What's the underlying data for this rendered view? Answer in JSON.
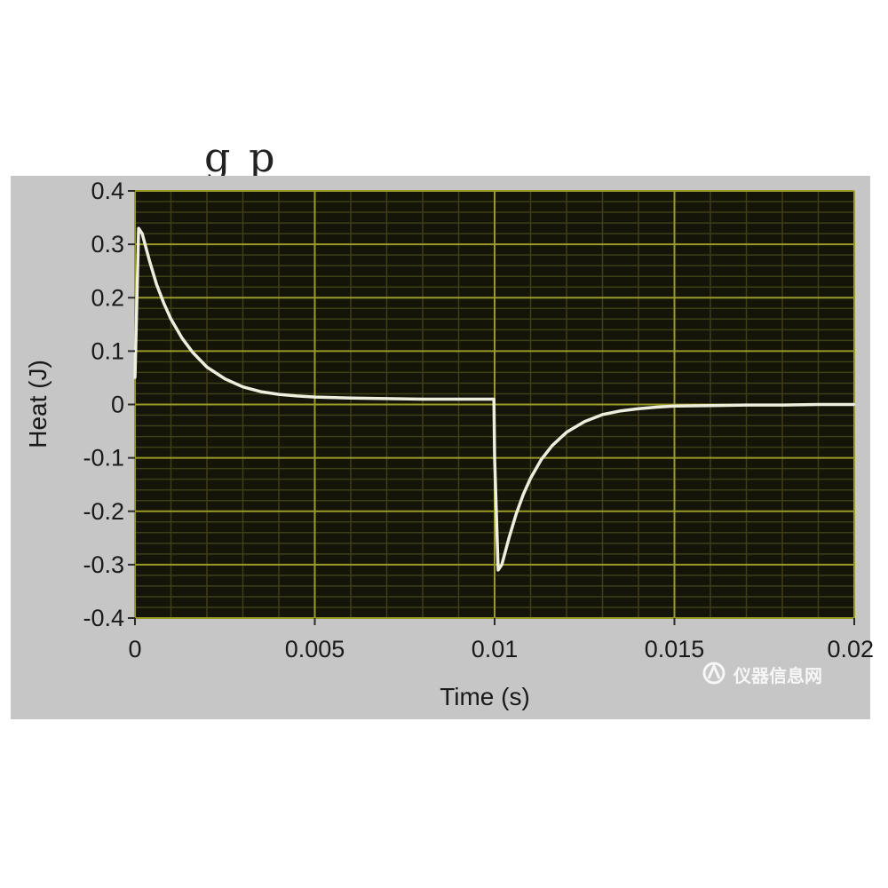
{
  "chart_data": {
    "type": "line",
    "title": "",
    "xlabel": "Time (s)",
    "ylabel": "Heat (J)",
    "xlim": [
      0,
      0.02
    ],
    "ylim": [
      -0.4,
      0.4
    ],
    "x_ticks": [
      0,
      0.005,
      0.01,
      0.015,
      0.02
    ],
    "x_tick_labels": [
      "0",
      "0.005",
      "0.01",
      "0.015",
      "0.02"
    ],
    "y_ticks": [
      0.4,
      0.3,
      0.2,
      0.1,
      0,
      -0.1,
      -0.2,
      -0.3,
      -0.4
    ],
    "y_tick_labels": [
      "0.4",
      "0.3",
      "0.2",
      "0.1",
      "0",
      "-0.1",
      "-0.2",
      "-0.3",
      "-0.4"
    ],
    "grid": true,
    "legend": "none",
    "colors": {
      "plot_background": "#141408",
      "major_grid": "#9a9a28",
      "minor_grid": "#3e3e18",
      "series": "#eeeede",
      "panel": "#c6c6c6"
    },
    "series": [
      {
        "x": [
          0,
          0.0001,
          0.0002,
          0.0004,
          0.0006,
          0.0008,
          0.001,
          0.0013,
          0.0016,
          0.002,
          0.0025,
          0.003,
          0.0035,
          0.004,
          0.0045,
          0.005,
          0.006,
          0.007,
          0.008,
          0.009,
          0.00998,
          0.01,
          0.0101,
          0.0102,
          0.0104,
          0.0106,
          0.0108,
          0.011,
          0.0113,
          0.0116,
          0.012,
          0.0125,
          0.013,
          0.0135,
          0.014,
          0.0145,
          0.015,
          0.016,
          0.017,
          0.018,
          0.019,
          0.02
        ],
        "values": [
          0.05,
          0.33,
          0.32,
          0.27,
          0.225,
          0.19,
          0.16,
          0.125,
          0.098,
          0.07,
          0.048,
          0.033,
          0.024,
          0.019,
          0.016,
          0.014,
          0.012,
          0.011,
          0.01,
          0.01,
          0.01,
          -0.1,
          -0.31,
          -0.3,
          -0.25,
          -0.205,
          -0.168,
          -0.138,
          -0.103,
          -0.077,
          -0.052,
          -0.032,
          -0.019,
          -0.012,
          -0.008,
          -0.005,
          -0.003,
          -0.002,
          -0.001,
          -0.001,
          0,
          0
        ]
      }
    ]
  },
  "header_fragment": "g       p",
  "watermark": {
    "text": "仪器信息网",
    "icon": "instrument-logo-icon"
  }
}
